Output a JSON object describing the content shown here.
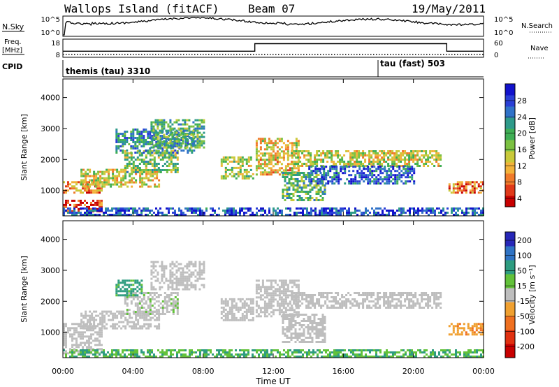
{
  "header": {
    "station": "Wallops Island (fitACF)",
    "beam": "Beam 07",
    "date": "19/May/2011"
  },
  "strips": {
    "nsky": {
      "label": "N.Sky",
      "left_ticks": [
        "10^5",
        "10^0"
      ],
      "right_ticks": [
        "10^5",
        "10^0"
      ],
      "right_label": "N.Search"
    },
    "freq": {
      "label_line1": "Freq.",
      "label_line2": "[MHz]",
      "left_ticks": [
        "18",
        "8"
      ],
      "right_ticks": [
        "60",
        "0"
      ],
      "right_label": "Nave"
    },
    "cpid": {
      "label": "CPID",
      "programs": [
        "themis (tau) 3310",
        "tau (fast) 503"
      ]
    }
  },
  "chart_data": [
    {
      "type": "heatmap",
      "name": "power-panel",
      "ylabel": "Slant Range [km]",
      "yticks": [
        "4000",
        "3000",
        "2000",
        "1000"
      ],
      "ytick_values": [
        4000,
        3000,
        2000,
        1000
      ],
      "ylim": [
        180,
        4600
      ],
      "xlim_hours": [
        0,
        24
      ],
      "colorbar": {
        "label": "Power [dB]",
        "ticks": [
          "28",
          "24",
          "20",
          "16",
          "12",
          "8",
          "4"
        ],
        "tick_values": [
          28,
          24,
          20,
          16,
          12,
          8,
          4
        ],
        "range": [
          0,
          30
        ],
        "colors": [
          "#1212cc",
          "#2a3fd6",
          "#3072c8",
          "#2e9a8a",
          "#3fae55",
          "#7cc142",
          "#c9c93a",
          "#f2b23a",
          "#f07a2a",
          "#e03a1a",
          "#c80000"
        ]
      },
      "bands": [
        {
          "t": [
            0.0,
            2.2
          ],
          "r": [
            900,
            1300
          ],
          "p": 22
        },
        {
          "t": [
            0.0,
            2.2
          ],
          "r": [
            300,
            700
          ],
          "p": 26
        },
        {
          "t": [
            1.0,
            5.5
          ],
          "r": [
            1100,
            1700
          ],
          "p": 18
        },
        {
          "t": [
            3.5,
            6.5
          ],
          "r": [
            1600,
            2300
          ],
          "p": 14
        },
        {
          "t": [
            3.0,
            7.5
          ],
          "r": [
            2200,
            3000
          ],
          "p": 9
        },
        {
          "t": [
            5.0,
            8.0
          ],
          "r": [
            2400,
            3300
          ],
          "p": 12
        },
        {
          "t": [
            9.0,
            10.8
          ],
          "r": [
            1400,
            2100
          ],
          "p": 16
        },
        {
          "t": [
            11.0,
            13.5
          ],
          "r": [
            1500,
            2700
          ],
          "p": 19
        },
        {
          "t": [
            12.5,
            15.0
          ],
          "r": [
            700,
            1600
          ],
          "p": 13
        },
        {
          "t": [
            13.0,
            21.5
          ],
          "r": [
            1800,
            2300
          ],
          "p": 17
        },
        {
          "t": [
            14.0,
            20.0
          ],
          "r": [
            1200,
            1800
          ],
          "p": 6
        },
        {
          "t": [
            22.0,
            24.0
          ],
          "r": [
            900,
            1300
          ],
          "p": 24
        },
        {
          "t": [
            0.0,
            24.0
          ],
          "r": [
            200,
            450
          ],
          "p": 5
        }
      ]
    },
    {
      "type": "heatmap",
      "name": "velocity-panel",
      "ylabel": "Slant Range [km]",
      "yticks": [
        "4000",
        "3000",
        "2000",
        "1000"
      ],
      "ytick_values": [
        4000,
        3000,
        2000,
        1000
      ],
      "ylim": [
        180,
        4600
      ],
      "xlim_hours": [
        0,
        24
      ],
      "colorbar": {
        "label": "Velocity [m s⁻¹]",
        "ticks": [
          "200",
          "100",
          "50",
          "15",
          "-15",
          "-50",
          "-100",
          "-200"
        ],
        "tick_values": [
          200,
          100,
          50,
          15,
          -15,
          -50,
          -100,
          -200
        ],
        "colors": [
          "#2727b8",
          "#2f73c4",
          "#2e9c80",
          "#63c23a",
          "#bebebe",
          "#f0a030",
          "#ef7020",
          "#e03010",
          "#c80000"
        ]
      },
      "bands": [
        {
          "t": [
            0.0,
            2.2
          ],
          "r": [
            300,
            1300
          ],
          "v": 0
        },
        {
          "t": [
            1.0,
            5.5
          ],
          "r": [
            1100,
            1700
          ],
          "v": 0
        },
        {
          "t": [
            3.5,
            6.5
          ],
          "r": [
            1600,
            2300
          ],
          "v": 5
        },
        {
          "t": [
            3.0,
            4.5
          ],
          "r": [
            2200,
            2700
          ],
          "v": 40
        },
        {
          "t": [
            5.0,
            8.0
          ],
          "r": [
            2400,
            3300
          ],
          "v": 0
        },
        {
          "t": [
            9.0,
            10.8
          ],
          "r": [
            1400,
            2100
          ],
          "v": 0
        },
        {
          "t": [
            11.0,
            13.5
          ],
          "r": [
            1500,
            2700
          ],
          "v": 0
        },
        {
          "t": [
            12.5,
            15.0
          ],
          "r": [
            700,
            1600
          ],
          "v": 0
        },
        {
          "t": [
            13.0,
            21.5
          ],
          "r": [
            1800,
            2300
          ],
          "v": 0
        },
        {
          "t": [
            22.0,
            24.0
          ],
          "r": [
            900,
            1300
          ],
          "v": -40
        },
        {
          "t": [
            0.0,
            24.0
          ],
          "r": [
            200,
            450
          ],
          "v": 30
        }
      ]
    }
  ],
  "xaxis": {
    "label": "Time UT",
    "ticks": [
      "00:00",
      "04:00",
      "08:00",
      "12:00",
      "16:00",
      "20:00",
      "00:00"
    ],
    "tick_hours": [
      0,
      4,
      8,
      12,
      16,
      20,
      24
    ]
  }
}
